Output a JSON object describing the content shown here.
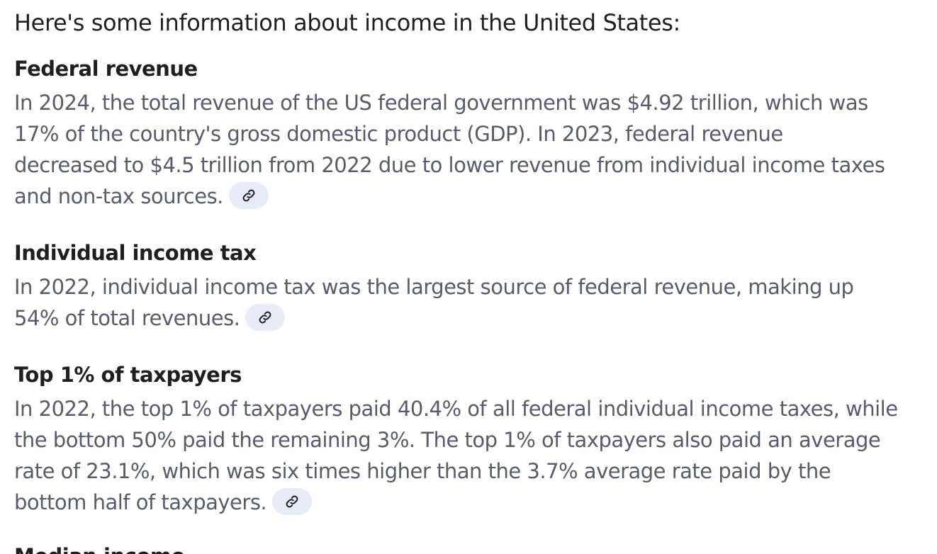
{
  "intro": "Here's some information about income in the United States:",
  "sections": [
    {
      "heading": "Federal revenue",
      "lines": [
        "In 2024, the total revenue of the US federal government was $4.92 trillion, which was",
        "17% of the country's gross domestic product (GDP). In 2023, federal revenue",
        "decreased to $4.5 trillion from 2022 due to lower revenue from individual income taxes",
        "and non-tax sources."
      ],
      "source_icon": "link-icon"
    },
    {
      "heading": "Individual income tax",
      "lines": [
        "In 2022, individual income tax was the largest source of federal revenue, making up",
        "54% of total revenues."
      ],
      "source_icon": "link-icon"
    },
    {
      "heading": "Top 1% of taxpayers",
      "lines": [
        "In 2022, the top 1% of taxpayers paid 40.4% of all federal individual income taxes, while",
        "the bottom 50% paid the remaining 3%. The top 1% of taxpayers also paid an average",
        "rate of 23.1%, which was six times higher than the 3.7% average rate paid by the",
        "bottom half of taxpayers."
      ],
      "source_icon": "link-icon"
    },
    {
      "heading": "Median income"
    }
  ],
  "colors": {
    "heading": "#1f1f1f",
    "body": "#575b6a",
    "chip_bg": "#e7ecf8",
    "chip_icon": "#1f1f1f"
  }
}
